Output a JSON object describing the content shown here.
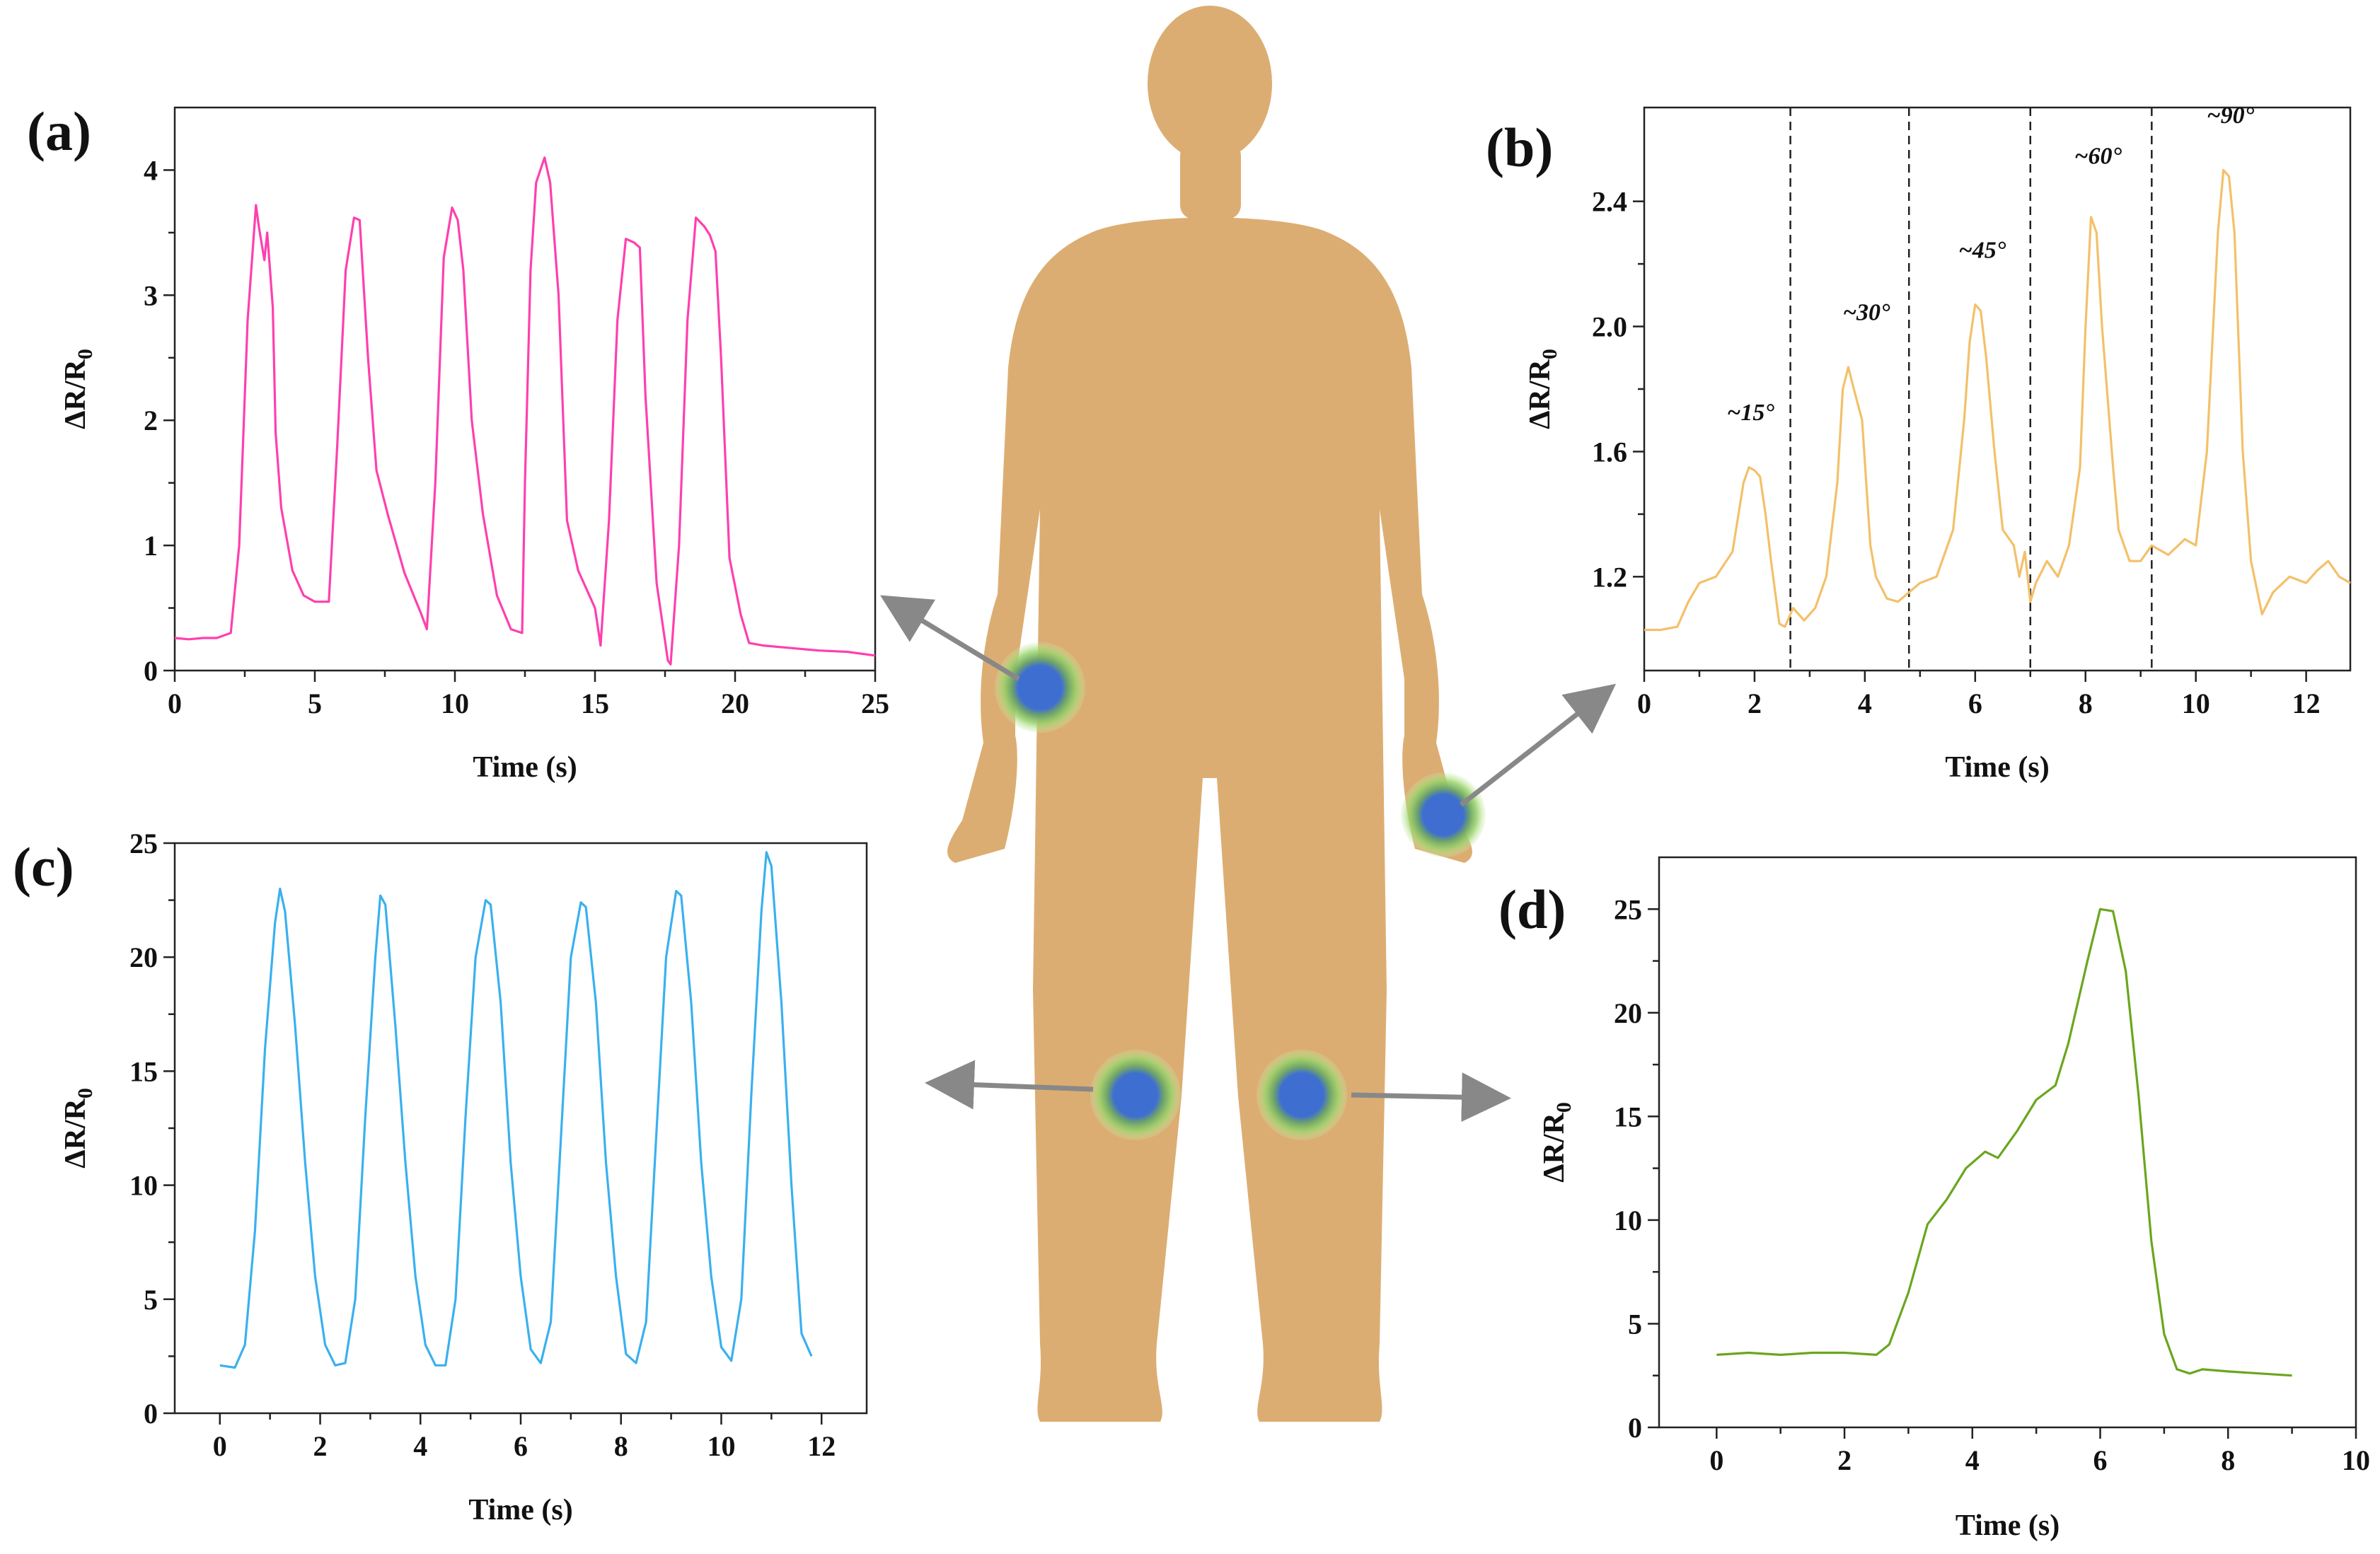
{
  "colors": {
    "body": "#dcad72",
    "sensor_core": "#3e6fd0",
    "sensor_halo": "#9ad36a",
    "arrow": "#888888",
    "series_a": "#ff3fae",
    "series_b": "#f3c06a",
    "series_c": "#3ab0ef",
    "series_d": "#6aa61e"
  },
  "chart_data": [
    {
      "panel": "(a)",
      "type": "line",
      "xlabel": "Time (s)",
      "ylabel": "ΔR/R₀",
      "ylabel_main": "ΔR/R",
      "ylabel_sub": "0",
      "xlim": [
        0,
        25
      ],
      "ylim": [
        0,
        4.5
      ],
      "xticks": [
        0,
        5,
        10,
        15,
        20,
        25
      ],
      "yticks": [
        0,
        1,
        2,
        3,
        4
      ],
      "color": "#ff3fae",
      "series": [
        {
          "x": [
            0,
            0.5,
            1,
            1.5,
            2,
            2.3,
            2.6,
            2.9,
            3.0,
            3.2,
            3.3,
            3.5,
            3.6,
            3.8,
            4.2,
            4.6,
            5.0,
            5.5,
            5.8,
            6.1,
            6.4,
            6.6,
            6.9,
            7.2,
            7.6,
            8.2,
            8.8,
            9.0,
            9.3,
            9.6,
            9.9,
            10.1,
            10.3,
            10.6,
            11,
            11.5,
            12,
            12.4,
            12.5,
            12.7,
            12.9,
            13.2,
            13.4,
            13.7,
            14.0,
            14.4,
            15.0,
            15.2,
            15.5,
            15.8,
            16.1,
            16.4,
            16.6,
            16.8,
            17.2,
            17.6,
            17.7,
            18.0,
            18.3,
            18.6,
            18.9,
            19.1,
            19.3,
            19.5,
            19.8,
            20.2,
            20.5,
            21,
            22,
            23,
            24,
            25
          ],
          "y": [
            0.26,
            0.25,
            0.26,
            0.26,
            0.3,
            1.0,
            2.8,
            3.72,
            3.55,
            3.28,
            3.5,
            2.9,
            1.9,
            1.3,
            0.8,
            0.6,
            0.55,
            0.55,
            1.8,
            3.2,
            3.62,
            3.6,
            2.5,
            1.6,
            1.25,
            0.78,
            0.45,
            0.33,
            1.5,
            3.3,
            3.7,
            3.6,
            3.2,
            2.0,
            1.25,
            0.6,
            0.33,
            0.3,
            1.5,
            3.2,
            3.9,
            4.1,
            3.9,
            3.0,
            1.2,
            0.8,
            0.5,
            0.2,
            1.2,
            2.8,
            3.45,
            3.42,
            3.38,
            2.2,
            0.7,
            0.08,
            0.05,
            1.0,
            2.8,
            3.62,
            3.55,
            3.48,
            3.35,
            2.5,
            0.9,
            0.45,
            0.22,
            0.2,
            0.18,
            0.16,
            0.15,
            0.12
          ]
        }
      ]
    },
    {
      "panel": "(b)",
      "type": "line",
      "xlabel": "Time (s)",
      "ylabel": "ΔR/R₀",
      "ylabel_main": "ΔR/R",
      "ylabel_sub": "0",
      "xlim": [
        0,
        12.8
      ],
      "ylim": [
        0.9,
        2.7
      ],
      "xticks": [
        0,
        2,
        4,
        6,
        8,
        10,
        12
      ],
      "yticks": [
        1.2,
        1.6,
        2.0,
        2.4
      ],
      "dividers_x": [
        2.65,
        4.8,
        7.0,
        9.2
      ],
      "annotations": [
        {
          "text": "~15°",
          "x": 1.5,
          "y": 1.7
        },
        {
          "text": "~30°",
          "x": 3.6,
          "y": 2.02
        },
        {
          "text": "~45°",
          "x": 5.7,
          "y": 2.22
        },
        {
          "text": "~60°",
          "x": 7.8,
          "y": 2.52
        },
        {
          "text": "~90°",
          "x": 10.2,
          "y": 2.65
        }
      ],
      "color": "#f3c06a",
      "series": [
        {
          "x": [
            0,
            0.3,
            0.6,
            0.8,
            1.0,
            1.3,
            1.6,
            1.8,
            1.9,
            2.0,
            2.1,
            2.2,
            2.3,
            2.45,
            2.55,
            2.7,
            2.9,
            3.1,
            3.3,
            3.5,
            3.6,
            3.7,
            3.8,
            3.95,
            4.1,
            4.2,
            4.4,
            4.6,
            4.8,
            5.0,
            5.3,
            5.6,
            5.8,
            5.9,
            6.0,
            6.1,
            6.2,
            6.35,
            6.5,
            6.7,
            6.8,
            6.9,
            7.0,
            7.1,
            7.3,
            7.5,
            7.7,
            7.9,
            8.0,
            8.1,
            8.2,
            8.3,
            8.5,
            8.6,
            8.8,
            9.0,
            9.2,
            9.5,
            9.8,
            10.0,
            10.2,
            10.4,
            10.5,
            10.6,
            10.7,
            10.85,
            11.0,
            11.2,
            11.4,
            11.7,
            12.0,
            12.2,
            12.4,
            12.6,
            12.8
          ],
          "y": [
            1.03,
            1.03,
            1.04,
            1.12,
            1.18,
            1.2,
            1.28,
            1.5,
            1.55,
            1.54,
            1.52,
            1.4,
            1.25,
            1.05,
            1.04,
            1.1,
            1.06,
            1.1,
            1.2,
            1.5,
            1.8,
            1.87,
            1.8,
            1.7,
            1.3,
            1.2,
            1.13,
            1.12,
            1.15,
            1.18,
            1.2,
            1.35,
            1.7,
            1.95,
            2.07,
            2.05,
            1.9,
            1.6,
            1.35,
            1.3,
            1.2,
            1.28,
            1.12,
            1.18,
            1.25,
            1.2,
            1.3,
            1.55,
            2.0,
            2.35,
            2.3,
            2.0,
            1.55,
            1.35,
            1.25,
            1.25,
            1.3,
            1.27,
            1.32,
            1.3,
            1.6,
            2.3,
            2.5,
            2.48,
            2.3,
            1.6,
            1.25,
            1.08,
            1.15,
            1.2,
            1.18,
            1.22,
            1.25,
            1.2,
            1.18
          ]
        }
      ]
    },
    {
      "panel": "(c)",
      "type": "line",
      "xlabel": "Time (s)",
      "ylabel": "ΔR/R₀",
      "ylabel_main": "ΔR/R",
      "ylabel_sub": "0",
      "xlim": [
        -0.9,
        12.9
      ],
      "ylim": [
        0,
        25
      ],
      "xticks": [
        0,
        2,
        4,
        6,
        8,
        10,
        12
      ],
      "yticks": [
        0,
        5,
        10,
        15,
        20,
        25
      ],
      "color": "#3ab0ef",
      "series": [
        {
          "x": [
            0,
            0.3,
            0.5,
            0.7,
            0.9,
            1.1,
            1.2,
            1.3,
            1.5,
            1.7,
            1.9,
            2.1,
            2.3,
            2.5,
            2.7,
            2.9,
            3.1,
            3.2,
            3.3,
            3.5,
            3.7,
            3.9,
            4.1,
            4.3,
            4.5,
            4.7,
            4.9,
            5.1,
            5.3,
            5.4,
            5.6,
            5.8,
            6.0,
            6.2,
            6.4,
            6.6,
            6.8,
            7.0,
            7.2,
            7.3,
            7.5,
            7.7,
            7.9,
            8.1,
            8.3,
            8.5,
            8.7,
            8.9,
            9.1,
            9.2,
            9.4,
            9.6,
            9.8,
            10.0,
            10.2,
            10.4,
            10.6,
            10.8,
            10.9,
            11.0,
            11.2,
            11.4,
            11.6,
            11.8
          ],
          "y": [
            2.1,
            2.0,
            3.0,
            8,
            16,
            21.5,
            23,
            22,
            17,
            11,
            6,
            3,
            2.1,
            2.2,
            5,
            13,
            20,
            22.7,
            22.3,
            17,
            11,
            6,
            3,
            2.1,
            2.1,
            5,
            13,
            20,
            22.5,
            22.3,
            18,
            11,
            6,
            2.8,
            2.2,
            4,
            12,
            20,
            22.4,
            22.2,
            18,
            11,
            6,
            2.6,
            2.2,
            4,
            12,
            20,
            22.9,
            22.7,
            18,
            11,
            6,
            2.9,
            2.3,
            5,
            14,
            22,
            24.6,
            24,
            18,
            10,
            3.5,
            2.5
          ]
        }
      ]
    },
    {
      "panel": "(d)",
      "type": "line",
      "xlabel": "Time (s)",
      "ylabel": "ΔR/R₀",
      "ylabel_main": "ΔR/R",
      "ylabel_sub": "0",
      "xlim": [
        -0.9,
        10
      ],
      "ylim": [
        0,
        27.5
      ],
      "xticks": [
        0,
        2,
        4,
        6,
        8,
        10
      ],
      "yticks": [
        0,
        5,
        10,
        15,
        20,
        25
      ],
      "color": "#6aa61e",
      "series": [
        {
          "x": [
            0,
            0.5,
            1,
            1.5,
            2,
            2.5,
            2.7,
            3.0,
            3.3,
            3.6,
            3.9,
            4.2,
            4.4,
            4.7,
            5.0,
            5.3,
            5.5,
            5.8,
            6.0,
            6.2,
            6.4,
            6.6,
            6.8,
            7.0,
            7.2,
            7.4,
            7.6,
            8.0,
            8.5,
            9.0
          ],
          "y": [
            3.5,
            3.6,
            3.5,
            3.6,
            3.6,
            3.5,
            4.0,
            6.5,
            9.8,
            11.0,
            12.5,
            13.3,
            13.0,
            14.3,
            15.8,
            16.5,
            18.5,
            22.5,
            25.0,
            24.9,
            22.0,
            16.0,
            9.0,
            4.5,
            2.8,
            2.6,
            2.8,
            2.7,
            2.6,
            2.5
          ]
        }
      ]
    }
  ]
}
